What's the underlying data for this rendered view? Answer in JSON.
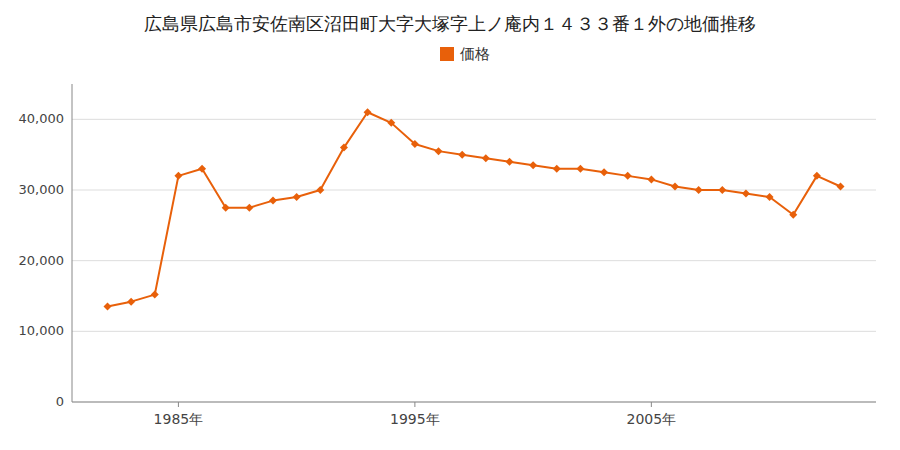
{
  "chart_data": {
    "type": "line",
    "title": "広島県広島市安佐南区沼田町大字大塚字上ノ庵内１４３３番１外の地価推移",
    "x": [
      1982,
      1983,
      1984,
      1985,
      1986,
      1987,
      1988,
      1989,
      1990,
      1991,
      1992,
      1993,
      1994,
      1995,
      1996,
      1997,
      1998,
      1999,
      2000,
      2001,
      2002,
      2003,
      2004,
      2005,
      2006,
      2007,
      2008,
      2009,
      2010,
      2011,
      2012,
      2013
    ],
    "series": [
      {
        "name": "価格",
        "color": "#E8600A",
        "marker": "diamond",
        "values": [
          13500,
          14200,
          15200,
          32000,
          33000,
          27500,
          27500,
          28500,
          29000,
          30000,
          36000,
          41000,
          39500,
          36500,
          35500,
          35000,
          34500,
          34000,
          33500,
          33000,
          33000,
          32500,
          32000,
          31500,
          30500,
          30000,
          30000,
          29500,
          29000,
          26500,
          32000,
          30500
        ]
      }
    ],
    "xlim": [
      1980.5,
      2014.5
    ],
    "xticks": [
      {
        "value": 1985,
        "label": "1985年"
      },
      {
        "value": 1995,
        "label": "1995年"
      },
      {
        "value": 2005,
        "label": "2005年"
      }
    ],
    "ylim": [
      0,
      45000
    ],
    "yticks": [
      0,
      {
        "value": 10000,
        "label": "10,000"
      },
      {
        "value": 20000,
        "label": "20,000"
      },
      {
        "value": 30000,
        "label": "30,000"
      },
      {
        "value": 40000,
        "label": "40,000"
      }
    ],
    "grid": true,
    "legend": "top"
  }
}
